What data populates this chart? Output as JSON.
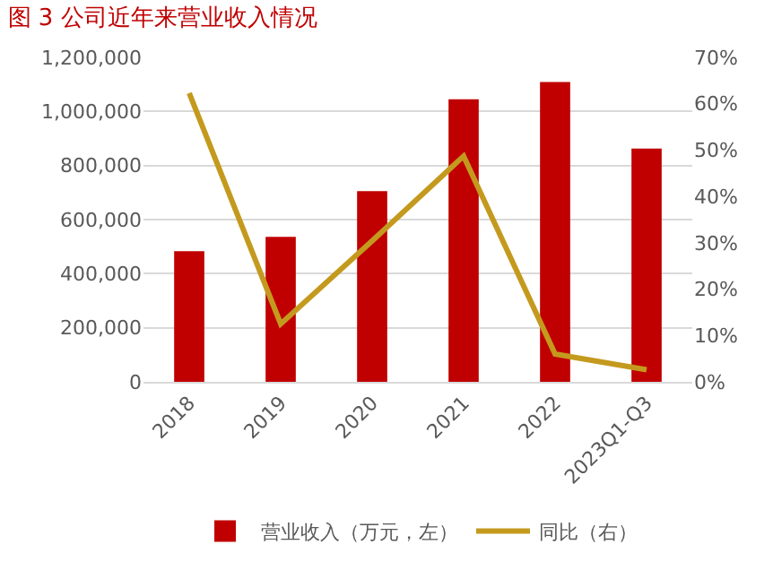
{
  "chart_data": {
    "type": "bar",
    "title": "图 3 公司近年来营业收入情况",
    "categories": [
      "2018",
      "2019",
      "2020",
      "2021",
      "2022",
      "2023Q1-Q3"
    ],
    "series": [
      {
        "name": "营业收入（万元，左）",
        "color": "#c00000",
        "values": [
          483000,
          536000,
          705000,
          1045000,
          1109000,
          863000
        ]
      },
      {
        "name": "同比（右）",
        "type": "line",
        "axis": "y2",
        "color": "#c49a1e",
        "values": [
          62.3,
          12.5,
          30.4,
          48.7,
          6.0,
          2.6
        ]
      }
    ],
    "ylim": [
      0,
      1200000
    ],
    "yticks": [
      0,
      {
        "value": 200000,
        "label": "200,000"
      },
      {
        "value": 400000,
        "label": "400,000"
      },
      {
        "value": 600000,
        "label": "600,000"
      },
      {
        "value": 800000,
        "label": "800,000"
      },
      {
        "value": 1000000,
        "label": "1,000,000"
      },
      {
        "value": 1200000,
        "label": "1,200,000"
      }
    ],
    "y2lim": [
      0,
      70
    ],
    "y2ticks": [
      {
        "value": 0,
        "label": "0%"
      },
      {
        "value": 10,
        "label": "10%"
      },
      {
        "value": 20,
        "label": "20%"
      },
      {
        "value": 30,
        "label": "30%"
      },
      {
        "value": 40,
        "label": "40%"
      },
      {
        "value": 50,
        "label": "50%"
      },
      {
        "value": 60,
        "label": "60%"
      },
      {
        "value": 70,
        "label": "70%"
      }
    ],
    "grid": "y",
    "legend": "bottom",
    "marker": "none",
    "line_style": "solid"
  }
}
